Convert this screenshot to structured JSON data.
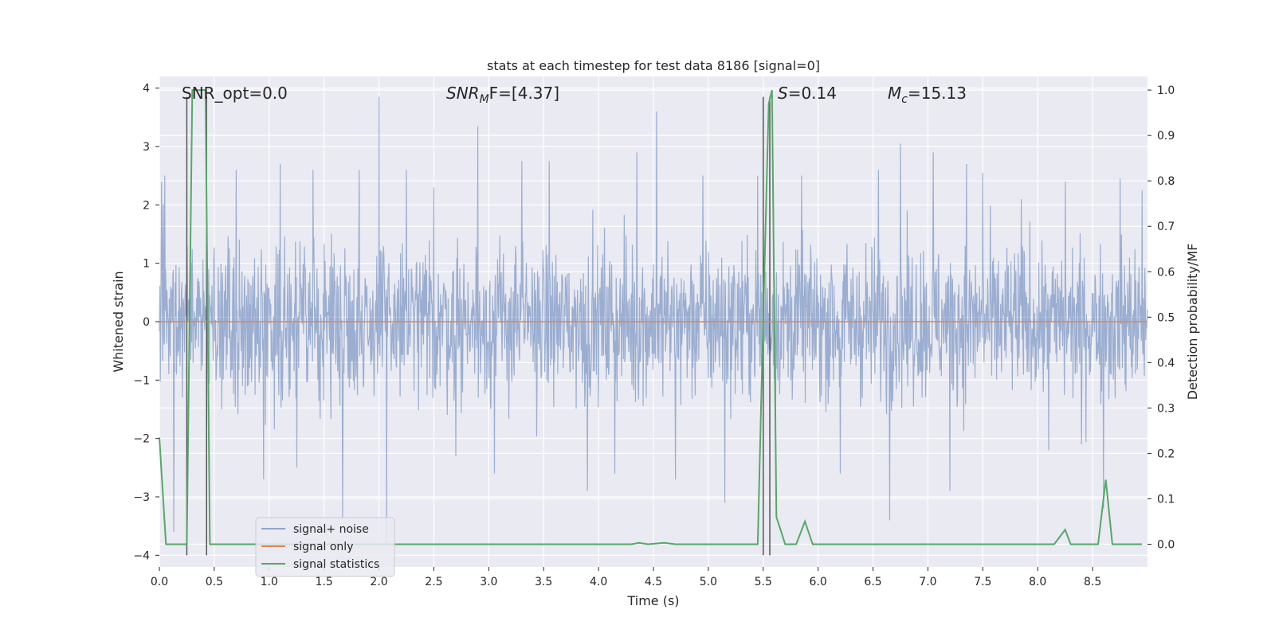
{
  "chart_data": {
    "type": "line",
    "title": "stats at each timestep for test data 8186 [signal=0]",
    "xlabel": "Time (s)",
    "ylabel_left": "Whitened strain",
    "ylabel_right": "Detection probability/MF",
    "xlim": [
      0,
      9
    ],
    "ylim_left": [
      -4.2,
      4.2
    ],
    "ylim_right": [
      -0.05,
      1.03
    ],
    "x_ticks": [
      0.0,
      0.5,
      1.0,
      1.5,
      2.0,
      2.5,
      3.0,
      3.5,
      4.0,
      4.5,
      5.0,
      5.5,
      6.0,
      6.5,
      7.0,
      7.5,
      8.0,
      8.5
    ],
    "x_tick_labels": [
      "0.0",
      "0.5",
      "1.0",
      "1.5",
      "2.0",
      "2.5",
      "3.0",
      "3.5",
      "4.0",
      "4.5",
      "5.0",
      "5.5",
      "6.0",
      "6.5",
      "7.0",
      "7.5",
      "8.0",
      "8.5"
    ],
    "y_left_ticks": [
      -4,
      -3,
      -2,
      -1,
      0,
      1,
      2,
      3,
      4
    ],
    "y_left_tick_labels": [
      "−4",
      "−3",
      "−2",
      "−1",
      "0",
      "1",
      "2",
      "3",
      "4"
    ],
    "y_right_ticks": [
      0.0,
      0.1,
      0.2,
      0.3,
      0.4,
      0.5,
      0.6,
      0.7,
      0.8,
      0.9,
      1.0
    ],
    "y_right_tick_labels": [
      "0.0",
      "0.1",
      "0.2",
      "0.3",
      "0.4",
      "0.5",
      "0.6",
      "0.7",
      "0.8",
      "0.9",
      "1.0"
    ],
    "annotations": {
      "snr_opt": "SNR_opt=0.0",
      "snr_mf_prefix": "SNR",
      "snr_mf_sub": "M",
      "snr_mf_suffix": "F=[4.37]",
      "s_prefix": "S",
      "s_suffix": "=0.14",
      "mc_prefix": "M",
      "mc_sub": "c",
      "mc_suffix": "=15.13"
    },
    "legend": {
      "placement": "lower-left",
      "entries": [
        "signal+ noise",
        "signal only",
        "signal statistics"
      ]
    },
    "series": [
      {
        "name": "signal+ noise",
        "axis": "left",
        "color": "#4c72b0",
        "kind": "whitened noise, bulk within about ±1.5, peaks near 3.9 and −3.6",
        "peaks": [
          [
            0.02,
            2.4
          ],
          [
            0.05,
            2.5
          ],
          [
            0.13,
            -3.6
          ],
          [
            0.25,
            1.1
          ],
          [
            0.7,
            2.6
          ],
          [
            0.95,
            -2.7
          ],
          [
            1.1,
            2.7
          ],
          [
            1.25,
            -2.5
          ],
          [
            1.4,
            2.6
          ],
          [
            1.67,
            -3.4
          ],
          [
            1.82,
            2.6
          ],
          [
            2.0,
            3.85
          ],
          [
            2.07,
            -3.8
          ],
          [
            2.25,
            2.6
          ],
          [
            2.5,
            2.3
          ],
          [
            2.7,
            -2.3
          ],
          [
            2.9,
            3.35
          ],
          [
            3.05,
            -2.6
          ],
          [
            3.3,
            2.75
          ],
          [
            3.55,
            2.75
          ],
          [
            3.9,
            -2.9
          ],
          [
            4.15,
            -2.6
          ],
          [
            4.35,
            2.9
          ],
          [
            4.53,
            3.6
          ],
          [
            4.7,
            -2.7
          ],
          [
            4.95,
            2.5
          ],
          [
            5.15,
            -3.1
          ],
          [
            5.45,
            2.5
          ],
          [
            5.85,
            2.5
          ],
          [
            6.2,
            -2.6
          ],
          [
            6.55,
            2.6
          ],
          [
            6.65,
            -3.4
          ],
          [
            6.75,
            3.05
          ],
          [
            7.05,
            2.9
          ],
          [
            7.2,
            -2.9
          ],
          [
            7.35,
            2.7
          ],
          [
            7.5,
            2.55
          ],
          [
            7.85,
            2.1
          ],
          [
            8.1,
            -2.2
          ],
          [
            8.25,
            2.4
          ],
          [
            8.4,
            -2.1
          ],
          [
            8.6,
            -3.2
          ],
          [
            8.75,
            2.45
          ],
          [
            8.95,
            2.25
          ]
        ]
      },
      {
        "name": "signal only",
        "axis": "left",
        "color": "#dd8452",
        "x": [
          0,
          9
        ],
        "y": [
          0,
          0
        ]
      },
      {
        "name": "signal statistics",
        "axis": "right",
        "color": "#55a868",
        "x": [
          0.0,
          0.06,
          0.13,
          0.25,
          0.3,
          0.42,
          0.46,
          0.5,
          0.55,
          1.0,
          2.0,
          3.0,
          4.0,
          4.3,
          4.37,
          4.45,
          4.6,
          4.7,
          5.0,
          5.45,
          5.5,
          5.55,
          5.58,
          5.62,
          5.7,
          5.8,
          5.88,
          5.95,
          6.05,
          7.0,
          8.0,
          8.15,
          8.25,
          8.3,
          8.4,
          8.55,
          8.62,
          8.68,
          8.75,
          8.95
        ],
        "y": [
          0.235,
          0.0,
          0.0,
          0.0,
          1.0,
          1.0,
          0.0,
          0.0,
          0.0,
          0.0,
          0.0,
          0.0,
          0.0,
          0.0,
          0.003,
          0.0,
          0.003,
          0.0,
          0.0,
          0.0,
          0.5,
          0.97,
          1.0,
          0.06,
          0.0,
          0.0,
          0.05,
          0.0,
          0.0,
          0.0,
          0.0,
          0.0,
          0.032,
          0.0,
          0.0,
          0.0,
          0.142,
          0.0,
          0.0,
          0.0
        ]
      }
    ],
    "vertical_markers": {
      "color": "#555555",
      "x": [
        0.25,
        0.43,
        5.5,
        5.56
      ]
    }
  }
}
